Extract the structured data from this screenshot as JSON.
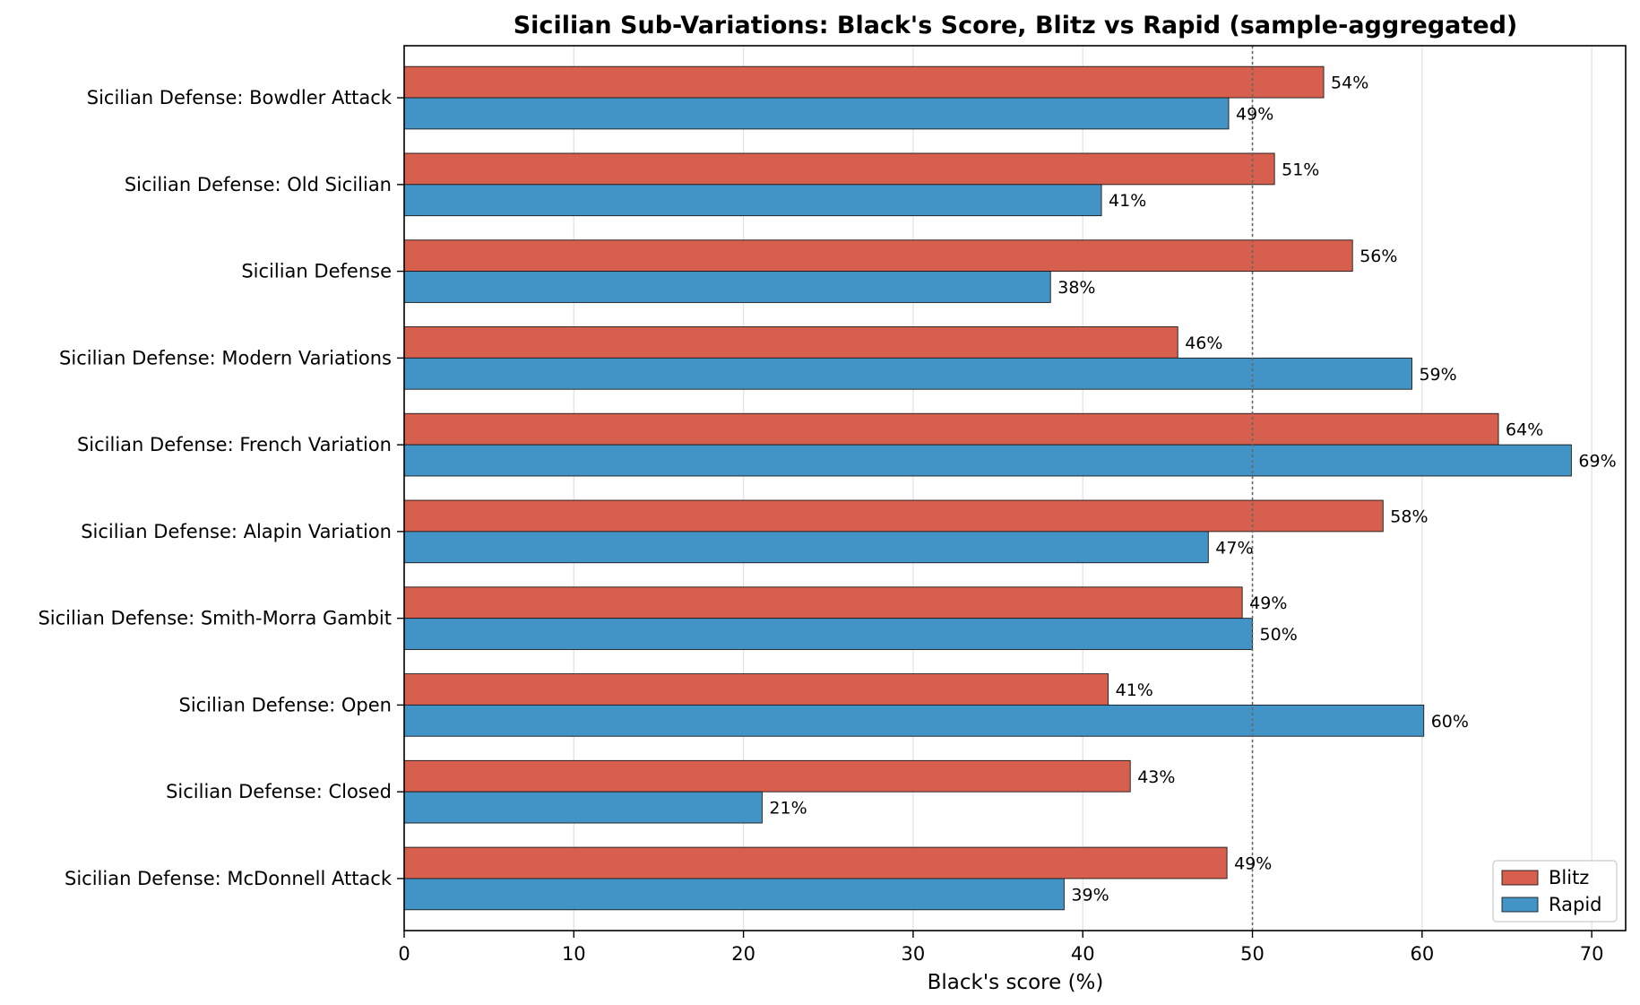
{
  "chart_data": {
    "type": "bar",
    "orientation": "horizontal",
    "title": "Sicilian Sub-Variations: Black's Score, Blitz vs Rapid (sample-aggregated)",
    "xlabel": "Black's score (%)",
    "ylabel": "",
    "xlim": [
      0,
      72
    ],
    "xticks": [
      0,
      10,
      20,
      30,
      40,
      50,
      60,
      70
    ],
    "grid": "vertical",
    "reference_line": 50,
    "legend_position": "bottom-right",
    "categories": [
      "Sicilian Defense: Bowdler Attack",
      "Sicilian Defense: Old Sicilian",
      "Sicilian Defense",
      "Sicilian Defense: Modern Variations",
      "Sicilian Defense: French Variation",
      "Sicilian Defense: Alapin Variation",
      "Sicilian Defense: Smith-Morra Gambit",
      "Sicilian Defense: Open",
      "Sicilian Defense: Closed",
      "Sicilian Defense: McDonnell Attack"
    ],
    "series": [
      {
        "name": "Blitz",
        "color": "#d65f4e",
        "values": [
          54.2,
          51.3,
          55.9,
          45.6,
          64.5,
          57.7,
          49.4,
          41.5,
          42.8,
          48.5
        ],
        "labels": [
          "54%",
          "51%",
          "56%",
          "46%",
          "64%",
          "58%",
          "49%",
          "41%",
          "43%",
          "49%"
        ]
      },
      {
        "name": "Rapid",
        "color": "#4394c6",
        "values": [
          48.6,
          41.1,
          38.1,
          59.4,
          68.8,
          47.4,
          50.0,
          60.1,
          21.1,
          38.9
        ],
        "labels": [
          "49%",
          "41%",
          "38%",
          "59%",
          "69%",
          "47%",
          "50%",
          "60%",
          "21%",
          "39%"
        ]
      }
    ]
  }
}
